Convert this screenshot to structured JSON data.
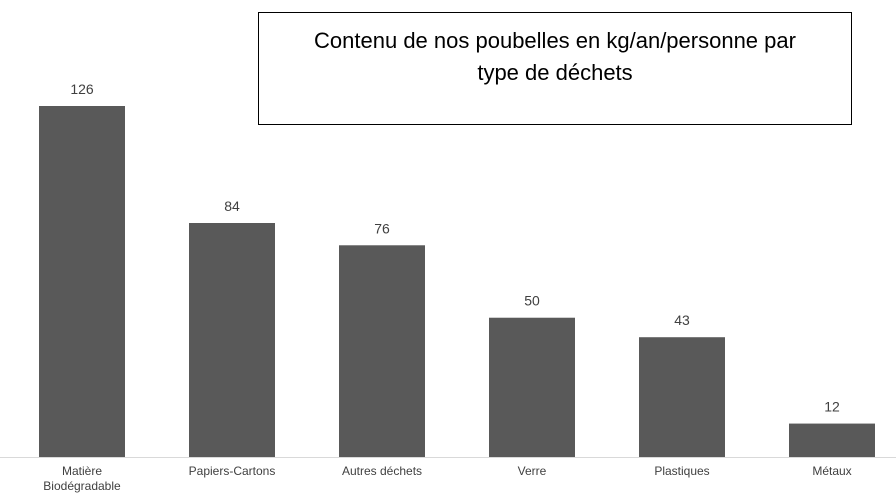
{
  "chart_data": {
    "type": "bar",
    "title": "Contenu de nos poubelles en kg/an/personne par type de déchets",
    "categories": [
      "Matière Biodégradable",
      "Papiers-Cartons",
      "Autres déchets",
      "Verre",
      "Plastiques",
      "Métaux"
    ],
    "values": [
      126,
      84,
      76,
      50,
      43,
      12
    ],
    "color": "#595959",
    "ylim": [
      0,
      126
    ]
  }
}
